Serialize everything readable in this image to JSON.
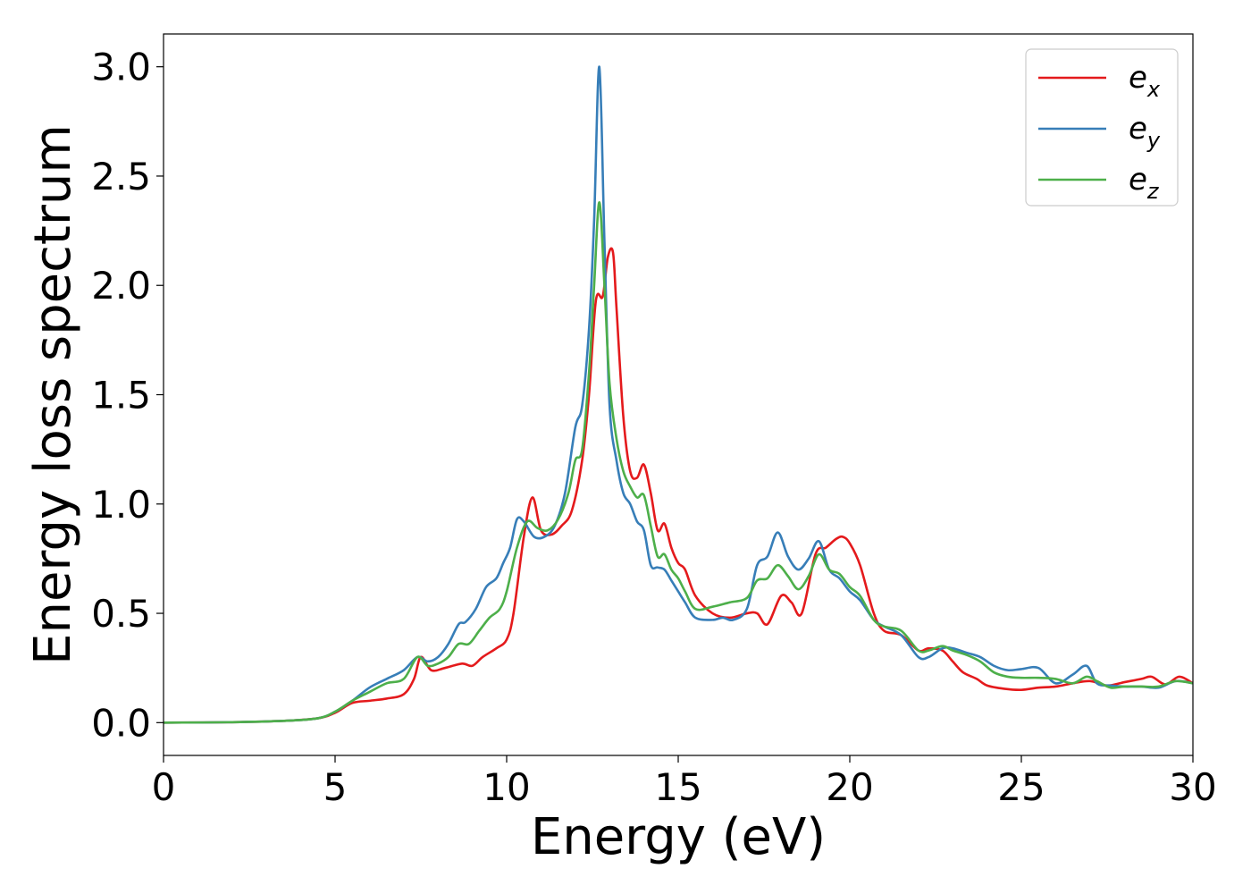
{
  "chart_data": {
    "type": "line",
    "title": "",
    "xlabel": "Energy (eV)",
    "ylabel": "Energy loss spectrum",
    "xlim": [
      0,
      30
    ],
    "ylim": [
      -0.15,
      3.15
    ],
    "xticks": [
      0,
      5,
      10,
      15,
      20,
      25,
      30
    ],
    "xtick_labels": [
      "0",
      "5",
      "10",
      "15",
      "20",
      "25",
      "30"
    ],
    "yticks": [
      0.0,
      0.5,
      1.0,
      1.5,
      2.0,
      2.5,
      3.0
    ],
    "ytick_labels": [
      "0.0",
      "0.5",
      "1.0",
      "1.5",
      "2.0",
      "2.5",
      "3.0"
    ],
    "grid": false,
    "legend_position": "top-right",
    "series": [
      {
        "name": "e_x",
        "label_base": "e",
        "label_sub": "x",
        "color": "#e41a1c",
        "x": [
          0,
          2,
          3.5,
          4.5,
          5,
          5.5,
          6,
          6.5,
          7,
          7.3,
          7.5,
          7.8,
          8.2,
          8.7,
          9.0,
          9.3,
          9.7,
          10.0,
          10.2,
          10.5,
          10.75,
          11.0,
          11.3,
          11.6,
          11.9,
          12.2,
          12.4,
          12.6,
          12.8,
          12.95,
          13.1,
          13.2,
          13.4,
          13.6,
          13.8,
          14.0,
          14.2,
          14.4,
          14.6,
          14.8,
          15.0,
          15.2,
          15.5,
          16.0,
          16.5,
          17.0,
          17.3,
          17.6,
          18.0,
          18.3,
          18.6,
          19.0,
          19.3,
          19.6,
          19.8,
          20.0,
          20.3,
          20.7,
          21.0,
          21.5,
          22.0,
          22.3,
          22.7,
          23.0,
          23.3,
          23.7,
          24.0,
          24.5,
          25.0,
          25.5,
          26.0,
          26.5,
          27.0,
          27.5,
          28.0,
          28.5,
          28.8,
          29.2,
          29.6,
          30.0
        ],
        "y": [
          0.0,
          0.002,
          0.008,
          0.02,
          0.045,
          0.09,
          0.1,
          0.11,
          0.13,
          0.2,
          0.3,
          0.24,
          0.25,
          0.27,
          0.26,
          0.3,
          0.34,
          0.38,
          0.5,
          0.85,
          1.03,
          0.88,
          0.86,
          0.9,
          0.97,
          1.2,
          1.5,
          1.93,
          1.95,
          2.13,
          2.15,
          1.9,
          1.4,
          1.15,
          1.12,
          1.18,
          1.05,
          0.88,
          0.91,
          0.8,
          0.73,
          0.7,
          0.58,
          0.5,
          0.48,
          0.5,
          0.5,
          0.45,
          0.58,
          0.55,
          0.5,
          0.77,
          0.8,
          0.84,
          0.85,
          0.82,
          0.72,
          0.5,
          0.42,
          0.4,
          0.33,
          0.34,
          0.33,
          0.28,
          0.23,
          0.2,
          0.17,
          0.155,
          0.15,
          0.16,
          0.165,
          0.18,
          0.19,
          0.17,
          0.185,
          0.2,
          0.21,
          0.175,
          0.21,
          0.18
        ]
      },
      {
        "name": "e_y",
        "label_base": "e",
        "label_sub": "y",
        "color": "#377eb8",
        "x": [
          0,
          2,
          3.5,
          4.5,
          5,
          5.5,
          6,
          6.5,
          7,
          7.4,
          7.7,
          8.0,
          8.3,
          8.6,
          8.8,
          9.1,
          9.4,
          9.7,
          9.9,
          10.1,
          10.3,
          10.5,
          10.8,
          11.1,
          11.4,
          11.7,
          12.0,
          12.2,
          12.4,
          12.55,
          12.7,
          12.85,
          13.0,
          13.2,
          13.4,
          13.6,
          13.8,
          14.0,
          14.2,
          14.4,
          14.6,
          14.8,
          15.0,
          15.2,
          15.5,
          16.0,
          16.3,
          16.6,
          17.0,
          17.3,
          17.6,
          17.9,
          18.2,
          18.5,
          18.8,
          19.1,
          19.4,
          19.7,
          20.0,
          20.3,
          20.7,
          21.0,
          21.5,
          22.0,
          22.3,
          22.7,
          23.0,
          23.4,
          23.8,
          24.2,
          24.6,
          25.0,
          25.5,
          26.0,
          26.5,
          26.9,
          27.2,
          27.6,
          28.0,
          28.5,
          29.0,
          29.5,
          30.0
        ],
        "y": [
          0.0,
          0.002,
          0.008,
          0.02,
          0.05,
          0.1,
          0.16,
          0.2,
          0.24,
          0.3,
          0.28,
          0.3,
          0.36,
          0.45,
          0.46,
          0.52,
          0.62,
          0.66,
          0.73,
          0.8,
          0.93,
          0.92,
          0.85,
          0.85,
          0.9,
          1.05,
          1.35,
          1.45,
          1.8,
          2.3,
          3.0,
          2.2,
          1.45,
          1.2,
          1.05,
          1.0,
          0.92,
          0.88,
          0.72,
          0.71,
          0.7,
          0.65,
          0.6,
          0.55,
          0.48,
          0.47,
          0.48,
          0.47,
          0.52,
          0.72,
          0.76,
          0.87,
          0.76,
          0.7,
          0.75,
          0.83,
          0.7,
          0.66,
          0.6,
          0.56,
          0.47,
          0.44,
          0.4,
          0.3,
          0.3,
          0.34,
          0.34,
          0.32,
          0.3,
          0.26,
          0.24,
          0.245,
          0.25,
          0.18,
          0.22,
          0.26,
          0.18,
          0.17,
          0.165,
          0.165,
          0.16,
          0.19,
          0.18
        ]
      },
      {
        "name": "e_z",
        "label_base": "e",
        "label_sub": "z",
        "color": "#4daf4a",
        "x": [
          0,
          2,
          3.5,
          4.5,
          5,
          5.5,
          6,
          6.5,
          7,
          7.4,
          7.7,
          8.0,
          8.3,
          8.6,
          8.9,
          9.2,
          9.5,
          9.8,
          10.0,
          10.3,
          10.6,
          10.9,
          11.2,
          11.5,
          11.8,
          12.0,
          12.2,
          12.4,
          12.55,
          12.7,
          12.85,
          13.0,
          13.2,
          13.4,
          13.6,
          13.8,
          14.0,
          14.2,
          14.4,
          14.6,
          14.8,
          15.0,
          15.2,
          15.5,
          16.0,
          16.5,
          17.0,
          17.3,
          17.6,
          17.9,
          18.2,
          18.5,
          18.8,
          19.1,
          19.4,
          19.7,
          20.0,
          20.3,
          20.7,
          21.0,
          21.5,
          22.0,
          22.3,
          22.7,
          23.0,
          23.4,
          23.8,
          24.2,
          24.6,
          25.0,
          25.5,
          26.0,
          26.5,
          26.9,
          27.2,
          27.6,
          28.0,
          28.5,
          29.0,
          29.5,
          30.0
        ],
        "y": [
          0.0,
          0.002,
          0.008,
          0.02,
          0.05,
          0.1,
          0.14,
          0.18,
          0.2,
          0.3,
          0.26,
          0.27,
          0.3,
          0.36,
          0.36,
          0.42,
          0.48,
          0.52,
          0.6,
          0.8,
          0.92,
          0.89,
          0.88,
          0.93,
          1.05,
          1.2,
          1.25,
          1.6,
          2.0,
          2.38,
          2.0,
          1.55,
          1.3,
          1.15,
          1.08,
          1.03,
          1.04,
          0.9,
          0.76,
          0.77,
          0.7,
          0.66,
          0.6,
          0.52,
          0.53,
          0.55,
          0.57,
          0.65,
          0.66,
          0.72,
          0.67,
          0.61,
          0.67,
          0.77,
          0.7,
          0.68,
          0.62,
          0.58,
          0.47,
          0.44,
          0.42,
          0.33,
          0.33,
          0.35,
          0.33,
          0.31,
          0.28,
          0.23,
          0.21,
          0.205,
          0.205,
          0.2,
          0.18,
          0.21,
          0.19,
          0.16,
          0.165,
          0.165,
          0.165,
          0.19,
          0.18
        ]
      }
    ]
  }
}
